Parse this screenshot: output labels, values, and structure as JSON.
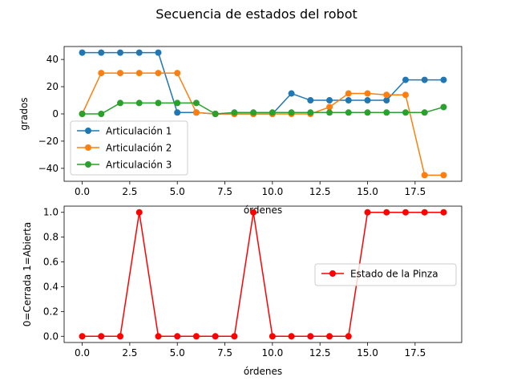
{
  "figure_title": "Secuencia de estados del robot",
  "chart_data": [
    {
      "type": "line",
      "xlabel": "órdenes",
      "ylabel": "grados",
      "xlim": [
        -0.95,
        19.95
      ],
      "ylim": [
        -49.5,
        49.5
      ],
      "xticks": [
        0,
        2.5,
        5,
        7.5,
        10,
        12.5,
        15,
        17.5
      ],
      "xtick_labels": [
        "0.0",
        "2.5",
        "5.0",
        "7.5",
        "10.0",
        "12.5",
        "15.0",
        "17.5"
      ],
      "yticks": [
        -40,
        -20,
        0,
        20,
        40
      ],
      "ytick_labels": [
        "−40",
        "−20",
        "0",
        "20",
        "40"
      ],
      "legend_position": "lower-left",
      "x": [
        0,
        1,
        2,
        3,
        4,
        5,
        6,
        7,
        8,
        9,
        10,
        11,
        12,
        13,
        14,
        15,
        16,
        17,
        18,
        19
      ],
      "series": [
        {
          "name": "Articulación 1",
          "color": "#1f77b4",
          "marker": "circle",
          "values": [
            45,
            45,
            45,
            45,
            45,
            1,
            1,
            0,
            0,
            0,
            0,
            15,
            10,
            10,
            10,
            10,
            10,
            25,
            25,
            25
          ]
        },
        {
          "name": "Articulación 2",
          "color": "#ff7f0e",
          "marker": "circle",
          "values": [
            0,
            30,
            30,
            30,
            30,
            30,
            1,
            0,
            0,
            0,
            0,
            0,
            0,
            5,
            15,
            15,
            14,
            14,
            -45,
            -45
          ]
        },
        {
          "name": "Articulación 3",
          "color": "#2ca02c",
          "marker": "circle",
          "values": [
            0,
            0,
            8,
            8,
            8,
            8,
            8,
            0,
            1,
            1,
            1,
            1,
            1,
            1,
            1,
            1,
            1,
            1,
            1,
            5
          ]
        }
      ]
    },
    {
      "type": "line",
      "xlabel": "órdenes",
      "ylabel": "0=Cerrada  1=Abierta",
      "xlim": [
        -0.95,
        19.95
      ],
      "ylim": [
        -0.05,
        1.05
      ],
      "xticks": [
        0,
        2.5,
        5,
        7.5,
        10,
        12.5,
        15,
        17.5
      ],
      "xtick_labels": [
        "0.0",
        "2.5",
        "5.0",
        "7.5",
        "10.0",
        "12.5",
        "15.0",
        "17.5"
      ],
      "yticks": [
        0,
        0.2,
        0.4,
        0.6,
        0.8,
        1.0
      ],
      "ytick_labels": [
        "0.0",
        "0.2",
        "0.4",
        "0.6",
        "0.8",
        "1.0"
      ],
      "legend_position": "center-right",
      "x": [
        0,
        1,
        2,
        3,
        4,
        5,
        6,
        7,
        8,
        9,
        10,
        11,
        12,
        13,
        14,
        15,
        16,
        17,
        18,
        19
      ],
      "series": [
        {
          "name": "Estado de la Pinza",
          "color": "#ff0000",
          "marker": "circle",
          "values": [
            0,
            0,
            0,
            1,
            0,
            0,
            0,
            0,
            0,
            1,
            0,
            0,
            0,
            0,
            0,
            1,
            1,
            1,
            1,
            1
          ]
        }
      ]
    }
  ]
}
